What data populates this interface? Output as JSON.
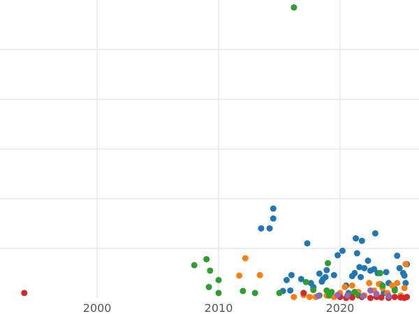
{
  "chart_data": {
    "type": "scatter",
    "title": "",
    "xlabel": "",
    "ylabel": "",
    "xlim": [
      1992,
      2026.5
    ],
    "ylim": [
      0,
      6
    ],
    "grid": true,
    "x_ticks": [
      2000,
      2010,
      2020
    ],
    "x_tick_labels": [
      "2000",
      "2010",
      "2020"
    ],
    "y_ticks": [
      1,
      2,
      3,
      4,
      5
    ],
    "colors": {
      "blue": "#1f77b4",
      "orange": "#ff7f0e",
      "green": "#2ca02c",
      "red": "#d62728",
      "purple": "#9467bd",
      "grid": "#e8e8e8",
      "tick_text": "#555555"
    },
    "series": [
      {
        "color": "blue",
        "points": [
          [
            2013.5,
            1.4
          ],
          [
            2014.2,
            1.4
          ],
          [
            2014.5,
            1.6
          ],
          [
            2014.5,
            1.8
          ],
          [
            2015.3,
            0.14
          ],
          [
            2015.6,
            0.36
          ],
          [
            2015.9,
            0.15
          ],
          [
            2016.0,
            0.46
          ],
          [
            2016.8,
            0.38
          ],
          [
            2017.3,
            1.1
          ],
          [
            2017.6,
            0.3
          ],
          [
            2017.8,
            0.22
          ],
          [
            2018.3,
            0.49
          ],
          [
            2018.5,
            0.33
          ],
          [
            2018.6,
            0.38
          ],
          [
            2018.8,
            0.42
          ],
          [
            2018.9,
            0.56
          ],
          [
            2019.5,
            0.46
          ],
          [
            2019.8,
            0.86
          ],
          [
            2020.2,
            0.95
          ],
          [
            2020.5,
            0.25
          ],
          [
            2020.7,
            0.1
          ],
          [
            2021.0,
            0.44
          ],
          [
            2021.2,
            0.5
          ],
          [
            2021.3,
            1.2
          ],
          [
            2021.4,
            0.9
          ],
          [
            2021.6,
            0.62
          ],
          [
            2021.7,
            0.42
          ],
          [
            2021.8,
            1.15
          ],
          [
            2022.0,
            0.6
          ],
          [
            2022.3,
            0.75
          ],
          [
            2022.5,
            0.55
          ],
          [
            2022.9,
            1.3
          ],
          [
            2022.8,
            0.58
          ],
          [
            2023.1,
            0.5
          ],
          [
            2023.3,
            0.28
          ],
          [
            2023.8,
            0.52
          ],
          [
            2024.0,
            0.3
          ],
          [
            2024.7,
            0.85
          ],
          [
            2024.9,
            0.6
          ],
          [
            2025.2,
            0.5
          ],
          [
            2025.3,
            0.45
          ],
          [
            2025.4,
            0.3
          ],
          [
            2025.5,
            0.68
          ],
          [
            2024.5,
            0.18
          ],
          [
            2023.6,
            0.1
          ]
        ]
      },
      {
        "color": "orange",
        "points": [
          [
            2011.7,
            0.45
          ],
          [
            2012.2,
            0.8
          ],
          [
            2013.4,
            0.46
          ],
          [
            2016.2,
            0.02
          ],
          [
            2017.0,
            0.06
          ],
          [
            2017.5,
            0.02
          ],
          [
            2018.0,
            0.02
          ],
          [
            2018.9,
            0.05
          ],
          [
            2019.5,
            0.02
          ],
          [
            2020.0,
            0.1
          ],
          [
            2020.4,
            0.22
          ],
          [
            2021.0,
            0.25
          ],
          [
            2021.5,
            0.12
          ],
          [
            2022.0,
            0.05
          ],
          [
            2022.4,
            0.3
          ],
          [
            2022.8,
            0.15
          ],
          [
            2023.2,
            0.28
          ],
          [
            2023.5,
            0.2
          ],
          [
            2023.9,
            0.1
          ],
          [
            2024.3,
            0.25
          ],
          [
            2024.7,
            0.3
          ],
          [
            2025.0,
            0.05
          ],
          [
            2025.3,
            0.2
          ],
          [
            2025.4,
            0.68
          ]
        ]
      },
      {
        "color": "green",
        "points": [
          [
            2016.2,
            5.85
          ],
          [
            2008.0,
            0.66
          ],
          [
            2009.0,
            0.78
          ],
          [
            2009.3,
            0.55
          ],
          [
            2009.2,
            0.22
          ],
          [
            2010.0,
            0.36
          ],
          [
            2010.0,
            0.1
          ],
          [
            2012.0,
            0.14
          ],
          [
            2013.0,
            0.1
          ],
          [
            2015.0,
            0.1
          ],
          [
            2017.0,
            0.1
          ],
          [
            2017.2,
            0.32
          ],
          [
            2017.8,
            0.16
          ],
          [
            2018.3,
            0.05
          ],
          [
            2018.9,
            0.15
          ],
          [
            2019.0,
            0.7
          ],
          [
            2019.3,
            0.12
          ],
          [
            2019.1,
            0.05
          ],
          [
            2020.8,
            0.05
          ],
          [
            2021.2,
            0.12
          ],
          [
            2021.5,
            0.05
          ],
          [
            2023.3,
            0.5
          ],
          [
            2023.5,
            0.25
          ],
          [
            2024.5,
            0.15
          ]
        ]
      },
      {
        "color": "red",
        "points": [
          [
            1994.0,
            0.1
          ],
          [
            2017.0,
            0.1
          ],
          [
            2020.0,
            0.02
          ],
          [
            2020.5,
            0.0
          ],
          [
            2021.0,
            0.01
          ],
          [
            2021.8,
            0.02
          ],
          [
            2022.5,
            0.0
          ],
          [
            2023.0,
            0.02
          ],
          [
            2023.4,
            0.01
          ],
          [
            2024.0,
            0.0
          ],
          [
            2024.5,
            0.02
          ],
          [
            2025.0,
            0.01
          ],
          [
            2025.5,
            0.02
          ],
          [
            2025.3,
            0.0
          ]
        ]
      },
      {
        "color": "purple",
        "points": [
          [
            2018.2,
            0.04
          ],
          [
            2019.8,
            0.06
          ],
          [
            2020.6,
            0.05
          ],
          [
            2022.5,
            0.15
          ],
          [
            2023.0,
            0.08
          ],
          [
            2024.0,
            0.04
          ],
          [
            2021.9,
            0.04
          ]
        ]
      }
    ]
  }
}
